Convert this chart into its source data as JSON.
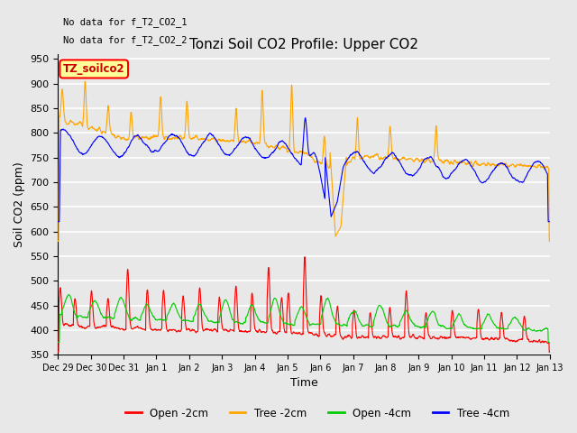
{
  "title": "Tonzi Soil CO2 Profile: Upper CO2",
  "xlabel": "Time",
  "ylabel": "Soil CO2 (ppm)",
  "ylim": [
    350,
    960
  ],
  "yticks": [
    350,
    400,
    450,
    500,
    550,
    600,
    650,
    700,
    750,
    800,
    850,
    900,
    950
  ],
  "annotations": [
    "No data for f_T2_CO2_1",
    "No data for f_T2_CO2_2"
  ],
  "legend_box_label": "TZ_soilco2",
  "legend_box_color": "#cc0000",
  "legend_box_bg": "#ffff99",
  "background_color": "#e8e8e8",
  "grid_color": "#ffffff",
  "colors": {
    "open_2cm": "#ff0000",
    "tree_2cm": "#ffa500",
    "open_4cm": "#00cc00",
    "tree_4cm": "#0000ff"
  },
  "xtick_labels": [
    "Dec 29",
    "Dec 30",
    "Dec 31",
    "Jan 1",
    "Jan 2",
    "Jan 3",
    "Jan 4",
    "Jan 5",
    "Jan 6",
    "Jan 7",
    "Jan 8",
    "Jan 9",
    "Jan 10",
    "Jan 11",
    "Jan 12",
    "Jan 13"
  ],
  "title_fontsize": 11,
  "axis_fontsize": 9,
  "tick_fontsize": 8
}
